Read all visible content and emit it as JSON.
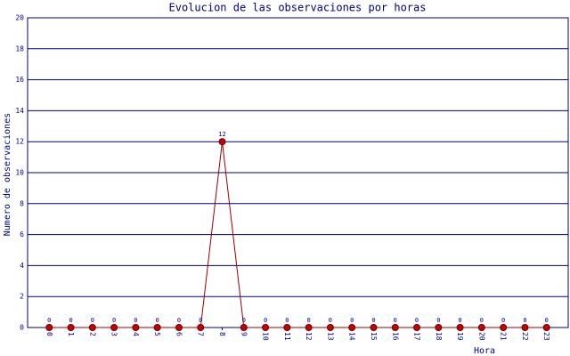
{
  "chart_data": {
    "type": "line",
    "title": "Evolucion de las observaciones por horas",
    "x_label": "Hora",
    "y_label": "Numero de observaciones",
    "categories": [
      "0",
      "1",
      "2",
      "3",
      "4",
      "5",
      "6",
      "7",
      "8",
      "9",
      "10",
      "11",
      "12",
      "13",
      "14",
      "15",
      "16",
      "17",
      "18",
      "19",
      "20",
      "21",
      "22",
      "23"
    ],
    "series": [
      {
        "name": "observaciones",
        "color": "#cc0000",
        "values": [
          0,
          0,
          0,
          0,
          0,
          0,
          0,
          0,
          12,
          0,
          0,
          0,
          0,
          0,
          0,
          0,
          0,
          0,
          0,
          0,
          0,
          0,
          0,
          0
        ]
      }
    ],
    "ylim": [
      0,
      20
    ],
    "yticks": [
      0,
      2,
      4,
      6,
      8,
      10,
      12,
      14,
      16,
      18,
      20
    ],
    "grid": true
  }
}
